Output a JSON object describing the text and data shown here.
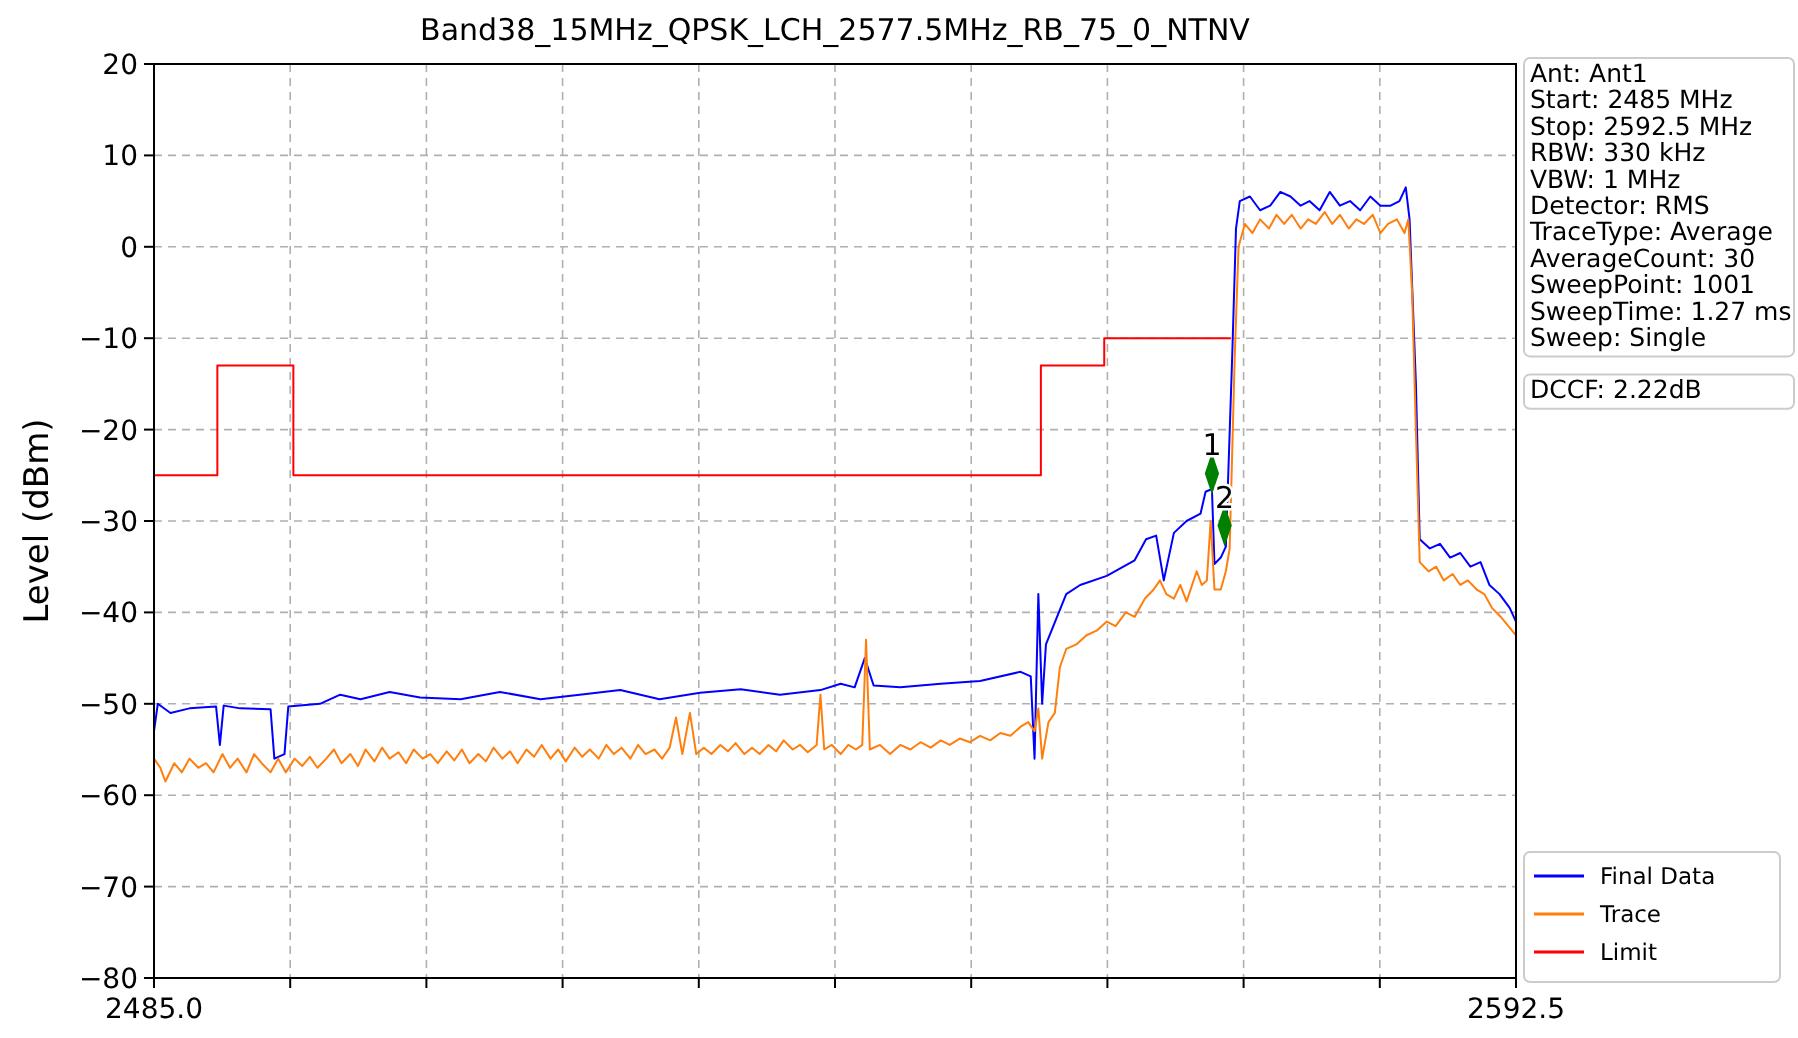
{
  "chart_data": {
    "type": "line",
    "title": "Band38_15MHz_QPSK_LCH_2577.5MHz_RB_75_0_NTNV",
    "ylabel": "Level (dBm)",
    "xlim": [
      2485,
      2592.5
    ],
    "ylim": [
      -80,
      20
    ],
    "xticks": [
      {
        "value": 2485,
        "label": "2485.0"
      },
      {
        "value": 2495.75,
        "label": null
      },
      {
        "value": 2506.5,
        "label": null
      },
      {
        "value": 2517.25,
        "label": null
      },
      {
        "value": 2528,
        "label": null
      },
      {
        "value": 2538.75,
        "label": null
      },
      {
        "value": 2549.5,
        "label": null
      },
      {
        "value": 2560.25,
        "label": null
      },
      {
        "value": 2571,
        "label": null
      },
      {
        "value": 2581.75,
        "label": null
      },
      {
        "value": 2592.5,
        "label": "2592.5"
      }
    ],
    "yticks": [
      {
        "value": -80,
        "label": "−80"
      },
      {
        "value": -70,
        "label": "−70"
      },
      {
        "value": -60,
        "label": "−60"
      },
      {
        "value": -50,
        "label": "−50"
      },
      {
        "value": -40,
        "label": "−40"
      },
      {
        "value": -30,
        "label": "−30"
      },
      {
        "value": -20,
        "label": "−20"
      },
      {
        "value": -10,
        "label": "−10"
      },
      0,
      10,
      20
    ],
    "grid": true,
    "legend": "bottom right",
    "line_style": "solid",
    "series": [
      {
        "name": "Final Data",
        "color": "#0000ff",
        "x": [
          2485.0,
          2485.3,
          2486.3,
          2487.8,
          2489.9,
          2490.2,
          2490.5,
          2491.8,
          2494.2,
          2494.5,
          2495.3,
          2495.6,
          2498.1,
          2499.7,
          2501.3,
          2503.6,
          2506.0,
          2509.2,
          2512.3,
          2515.5,
          2518.6,
          2521.8,
          2524.9,
          2528.1,
          2531.3,
          2534.4,
          2537.6,
          2539.2,
          2540.3,
          2541.1,
          2541.8,
          2543.9,
          2547.1,
          2550.2,
          2553.4,
          2554.2,
          2554.5,
          2554.8,
          2555.1,
          2555.4,
          2557.0,
          2558.1,
          2560.2,
          2562.4,
          2563.3,
          2564.1,
          2564.7,
          2565.5,
          2566.5,
          2567.6,
          2568.0,
          2568.5,
          2568.7,
          2569.2,
          2569.6,
          2570.1,
          2570.4,
          2570.7,
          2571.5,
          2572.3,
          2573.1,
          2573.9,
          2574.7,
          2575.5,
          2576.2,
          2577.0,
          2577.8,
          2578.6,
          2579.4,
          2580.2,
          2581.0,
          2581.8,
          2582.6,
          2583.3,
          2583.8,
          2584.1,
          2584.6,
          2584.9,
          2585.7,
          2586.5,
          2587.3,
          2588.1,
          2588.9,
          2589.7,
          2590.4,
          2591.2,
          2592.0,
          2592.5
        ],
        "values": [
          -53,
          -50,
          -51,
          -50.5,
          -50.3,
          -54.5,
          -50.2,
          -50.5,
          -50.6,
          -56,
          -55.5,
          -50.3,
          -50,
          -49,
          -49.5,
          -48.7,
          -49.3,
          -49.5,
          -48.7,
          -49.5,
          -49,
          -48.5,
          -49.5,
          -48.8,
          -48.4,
          -49,
          -48.5,
          -47.8,
          -48.2,
          -45,
          -48,
          -48.2,
          -47.8,
          -47.5,
          -46.5,
          -47,
          -56,
          -38,
          -50,
          -43.5,
          -38,
          -37,
          -36,
          -34.3,
          -32,
          -31.6,
          -36.5,
          -31.3,
          -30,
          -29.2,
          -26.8,
          -26.5,
          -34.7,
          -34,
          -32.8,
          -12,
          2,
          5,
          5.5,
          4,
          4.5,
          6,
          5.5,
          4.5,
          5,
          4,
          6,
          4.5,
          5,
          4,
          5.5,
          4.5,
          4.5,
          5,
          6.5,
          3,
          -15,
          -32,
          -33,
          -32.5,
          -34,
          -33.5,
          -35,
          -34.5,
          -37,
          -38,
          -39.5,
          -41
        ]
      },
      {
        "name": "Trace",
        "color": "#ff7f0e",
        "x": [
          2485.0,
          2485.5,
          2485.9,
          2486.6,
          2487.2,
          2487.8,
          2488.5,
          2489.1,
          2489.7,
          2490.4,
          2491.0,
          2491.6,
          2492.3,
          2492.9,
          2493.5,
          2494.2,
          2494.8,
          2495.4,
          2496.1,
          2496.7,
          2497.3,
          2497.9,
          2498.6,
          2499.2,
          2499.8,
          2500.5,
          2501.1,
          2501.7,
          2502.4,
          2503.0,
          2503.6,
          2504.3,
          2504.9,
          2505.5,
          2506.2,
          2506.8,
          2507.4,
          2508.1,
          2508.7,
          2509.3,
          2509.9,
          2510.6,
          2511.2,
          2511.8,
          2512.5,
          2513.1,
          2513.7,
          2514.4,
          2515.0,
          2515.6,
          2516.3,
          2516.9,
          2517.5,
          2518.2,
          2518.8,
          2519.4,
          2520.1,
          2520.7,
          2521.3,
          2521.9,
          2522.6,
          2523.2,
          2523.8,
          2524.5,
          2525.1,
          2525.7,
          2526.2,
          2526.7,
          2527.3,
          2527.8,
          2528.4,
          2529.0,
          2529.7,
          2530.3,
          2530.9,
          2531.6,
          2532.2,
          2532.8,
          2533.5,
          2534.1,
          2534.7,
          2535.4,
          2536.0,
          2536.6,
          2537.3,
          2537.6,
          2537.9,
          2538.5,
          2539.2,
          2539.8,
          2540.4,
          2540.9,
          2541.2,
          2541.5,
          2542.3,
          2543.1,
          2543.9,
          2544.7,
          2545.5,
          2546.3,
          2547.1,
          2547.8,
          2548.6,
          2549.4,
          2550.2,
          2551.0,
          2551.8,
          2552.6,
          2553.4,
          2554.0,
          2554.5,
          2554.8,
          2555.1,
          2555.6,
          2556.1,
          2556.5,
          2557.0,
          2557.8,
          2558.6,
          2559.4,
          2560.2,
          2560.9,
          2561.7,
          2562.4,
          2563.2,
          2563.9,
          2564.4,
          2564.9,
          2565.5,
          2566.0,
          2566.5,
          2567.3,
          2567.7,
          2568.1,
          2568.4,
          2568.7,
          2569.2,
          2569.6,
          2569.9,
          2570.3,
          2570.6,
          2571.1,
          2571.7,
          2572.3,
          2573.0,
          2573.6,
          2574.2,
          2574.8,
          2575.5,
          2576.1,
          2576.7,
          2577.4,
          2578.0,
          2578.6,
          2579.3,
          2579.9,
          2580.5,
          2581.2,
          2581.8,
          2582.4,
          2583.1,
          2583.7,
          2584.0,
          2584.3,
          2584.6,
          2584.9,
          2585.6,
          2586.2,
          2586.8,
          2587.5,
          2588.1,
          2588.7,
          2589.4,
          2590.0,
          2590.6,
          2591.3,
          2591.9,
          2592.5
        ],
        "values": [
          -56,
          -57,
          -58.5,
          -56.5,
          -57.5,
          -56,
          -57,
          -56.5,
          -57.5,
          -55.5,
          -57,
          -56,
          -57.5,
          -55.5,
          -56.5,
          -57.5,
          -56,
          -57.5,
          -56,
          -56.8,
          -55.8,
          -57,
          -56,
          -55,
          -56.5,
          -55.5,
          -56.8,
          -55,
          -56.3,
          -54.8,
          -56,
          -55.3,
          -56.5,
          -55,
          -56,
          -55.5,
          -56.5,
          -55.2,
          -56.2,
          -55,
          -56.5,
          -55.5,
          -56.3,
          -54.8,
          -56,
          -55.2,
          -56.5,
          -55,
          -55.8,
          -54.5,
          -56,
          -55,
          -56.3,
          -54.8,
          -55.8,
          -55,
          -56,
          -54.5,
          -55.5,
          -54.8,
          -56,
          -54.5,
          -55.5,
          -55,
          -56,
          -54.8,
          -51.5,
          -55.5,
          -51,
          -55.5,
          -54.8,
          -55.5,
          -54.5,
          -55.2,
          -54.3,
          -55.5,
          -54.8,
          -55.5,
          -54.5,
          -55.2,
          -54,
          -55,
          -54.5,
          -55.3,
          -54.5,
          -49,
          -55,
          -54.5,
          -55.5,
          -54.5,
          -55,
          -54.5,
          -43,
          -55,
          -54.5,
          -55.5,
          -54.5,
          -55,
          -54.2,
          -54.8,
          -54,
          -54.5,
          -53.8,
          -54.2,
          -53.5,
          -54,
          -53.2,
          -53.5,
          -52.5,
          -52,
          -53,
          -50.5,
          -56,
          -52,
          -51,
          -46,
          -44,
          -43.5,
          -42.5,
          -42,
          -41,
          -41.5,
          -40,
          -40.5,
          -38.5,
          -37.5,
          -36.5,
          -38,
          -38.5,
          -37,
          -38.8,
          -35.5,
          -37,
          -36.5,
          -30,
          -37.5,
          -37.5,
          -35.5,
          -33,
          -12,
          0,
          2.5,
          1.5,
          3,
          2,
          3.5,
          2.5,
          3.5,
          2,
          3,
          2.5,
          3.8,
          2.5,
          3.5,
          2,
          3,
          2.5,
          3.5,
          1.5,
          2.5,
          3,
          1.5,
          3,
          -5,
          -20,
          -34.5,
          -35.5,
          -35,
          -36.5,
          -35.8,
          -37,
          -36.5,
          -37.5,
          -38,
          -39.5,
          -40.5,
          -41.5,
          -42.5
        ]
      },
      {
        "name": "Limit",
        "type": "step",
        "color": "#ff0000",
        "x": [
          2485,
          2490,
          2496,
          2555,
          2560,
          2570
        ],
        "values": [
          -25,
          -13,
          -25,
          -13,
          -10,
          -10
        ]
      },
      {
        "type": "scatter",
        "color": "#008000",
        "marker": "diamond",
        "x": [
          2568.5,
          2569.5
        ],
        "values": [
          -24.8,
          -30.5
        ]
      }
    ],
    "annotations": [
      "Ant: Ant1\nStart: 2485 MHz\nStop: 2592.5 MHz\nRBW: 330 kHz\nVBW: 1 MHz\nDetector: RMS\nTraceType: Average\nAverageCount: 30\nSweepPoint: 1001\nSweepTime: 1.27 ms\nSweep: Single",
      "DCCF: 2.22dB",
      {
        "text": "1",
        "x": 2568.5,
        "y": -24.8
      },
      {
        "text": "2",
        "x": 2569.5,
        "y": -30.5
      }
    ]
  }
}
